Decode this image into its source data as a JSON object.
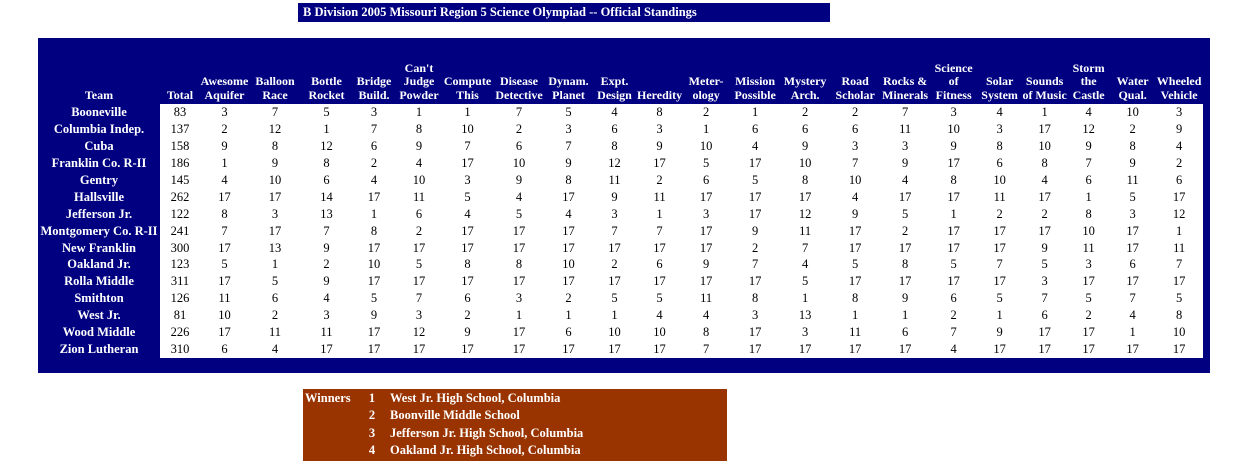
{
  "title": "B Division 2005 Missouri Region 5 Science Olympiad -- Official Standings",
  "colors": {
    "navy": "#000080",
    "brown": "#993300",
    "header_text": "#ffffff",
    "data_bg": "#ffffff",
    "data_text": "#000000"
  },
  "standings": {
    "columns": [
      "Team",
      "Total",
      "Awesome\nAquifer",
      "Balloon\nRace",
      "Bottle\nRocket",
      "Bridge\nBuild.",
      "Can't\nJudge\nPowder",
      "Compute\nThis",
      "Disease\nDetective",
      "Dynam.\nPlanet",
      "Expt.\nDesign",
      "Heredity",
      "Meter-\nology",
      "Mission\nPossible",
      "Mystery\nArch.",
      "Road\nScholar",
      "Rocks &\nMinerals",
      "Science\nof\nFitness",
      "Solar\nSystem",
      "Sounds\nof Music",
      "Storm\nthe\nCastle",
      "Water\nQual.",
      "Wheeled\nVehicle"
    ],
    "rows": [
      {
        "team": "Booneville",
        "total": 83,
        "scores": [
          3,
          7,
          5,
          3,
          1,
          1,
          7,
          5,
          4,
          8,
          2,
          1,
          2,
          2,
          7,
          3,
          4,
          1,
          4,
          10,
          3
        ]
      },
      {
        "team": "Columbia Indep.",
        "total": 137,
        "scores": [
          2,
          12,
          1,
          7,
          8,
          10,
          2,
          3,
          6,
          3,
          1,
          6,
          6,
          6,
          11,
          10,
          3,
          17,
          12,
          2,
          9
        ]
      },
      {
        "team": "Cuba",
        "total": 158,
        "scores": [
          9,
          8,
          12,
          6,
          9,
          7,
          6,
          7,
          8,
          9,
          10,
          4,
          9,
          3,
          3,
          9,
          8,
          10,
          9,
          8,
          4
        ]
      },
      {
        "team": "Franklin Co. R-II",
        "total": 186,
        "scores": [
          1,
          9,
          8,
          2,
          4,
          17,
          10,
          9,
          12,
          17,
          5,
          17,
          10,
          7,
          9,
          17,
          6,
          8,
          7,
          9,
          2
        ]
      },
      {
        "team": "Gentry",
        "total": 145,
        "scores": [
          4,
          10,
          6,
          4,
          10,
          3,
          9,
          8,
          11,
          2,
          6,
          5,
          8,
          10,
          4,
          8,
          10,
          4,
          6,
          11,
          6
        ]
      },
      {
        "team": "Hallsville",
        "total": 262,
        "scores": [
          17,
          17,
          14,
          17,
          11,
          5,
          4,
          17,
          9,
          11,
          17,
          17,
          17,
          4,
          17,
          17,
          11,
          17,
          1,
          5,
          17
        ]
      },
      {
        "team": "Jefferson Jr.",
        "total": 122,
        "scores": [
          8,
          3,
          13,
          1,
          6,
          4,
          5,
          4,
          3,
          1,
          3,
          17,
          12,
          9,
          5,
          1,
          2,
          2,
          8,
          3,
          12
        ]
      },
      {
        "team": "Montgomery Co. R-II",
        "total": 241,
        "scores": [
          7,
          17,
          7,
          8,
          2,
          17,
          17,
          17,
          7,
          7,
          17,
          9,
          11,
          17,
          2,
          17,
          17,
          17,
          10,
          17,
          1
        ]
      },
      {
        "team": "New Franklin",
        "total": 300,
        "scores": [
          17,
          13,
          9,
          17,
          17,
          17,
          17,
          17,
          17,
          17,
          17,
          2,
          7,
          17,
          17,
          17,
          17,
          9,
          11,
          17,
          11
        ]
      },
      {
        "team": "Oakland Jr.",
        "total": 123,
        "scores": [
          5,
          1,
          2,
          10,
          5,
          8,
          8,
          10,
          2,
          6,
          9,
          7,
          4,
          5,
          8,
          5,
          7,
          5,
          3,
          6,
          7
        ]
      },
      {
        "team": "Rolla Middle",
        "total": 311,
        "scores": [
          17,
          5,
          9,
          17,
          17,
          17,
          17,
          17,
          17,
          17,
          17,
          17,
          5,
          17,
          17,
          17,
          17,
          3,
          17,
          17,
          17
        ]
      },
      {
        "team": "Smithton",
        "total": 126,
        "scores": [
          11,
          6,
          4,
          5,
          7,
          6,
          3,
          2,
          5,
          5,
          11,
          8,
          1,
          8,
          9,
          6,
          5,
          7,
          5,
          7,
          5
        ]
      },
      {
        "team": "West Jr.",
        "total": 81,
        "scores": [
          10,
          2,
          3,
          9,
          3,
          2,
          1,
          1,
          1,
          4,
          4,
          3,
          13,
          1,
          1,
          2,
          1,
          6,
          2,
          4,
          8
        ]
      },
      {
        "team": "Wood Middle",
        "total": 226,
        "scores": [
          17,
          11,
          11,
          17,
          12,
          9,
          17,
          6,
          10,
          10,
          8,
          17,
          3,
          11,
          6,
          7,
          9,
          17,
          17,
          1,
          10
        ]
      },
      {
        "team": "Zion Lutheran",
        "total": 310,
        "scores": [
          6,
          4,
          17,
          17,
          17,
          17,
          17,
          17,
          17,
          17,
          7,
          17,
          17,
          17,
          17,
          4,
          17,
          17,
          17,
          17,
          17
        ]
      }
    ]
  },
  "winners": {
    "label": "Winners",
    "entries": [
      {
        "rank": "1",
        "school": "West Jr. High School, Columbia"
      },
      {
        "rank": "2",
        "school": "Boonville Middle School"
      },
      {
        "rank": "3",
        "school": "Jefferson Jr. High School, Columbia"
      },
      {
        "rank": "4",
        "school": "Oakland Jr. High School, Columbia"
      }
    ]
  }
}
